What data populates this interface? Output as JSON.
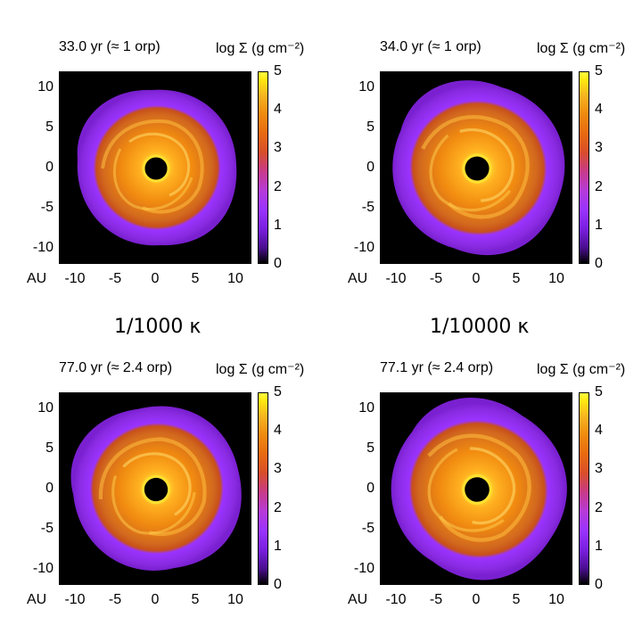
{
  "panels": [
    {
      "title": "33.0 yr (≈ 1 orp)",
      "cbar_label": "log Σ (g cm⁻²)"
    },
    {
      "title": "34.0 yr (≈ 1 orp)",
      "cbar_label": "log Σ (g cm⁻²)"
    },
    {
      "title": "77.0 yr (≈ 2.4 orp)",
      "cbar_label": "log Σ (g cm⁻²)"
    },
    {
      "title": "77.1 yr (≈ 2.4 orp)",
      "cbar_label": "log Σ (g cm⁻²)"
    }
  ],
  "axis": {
    "xlabel": "AU",
    "yticks": [
      "10",
      "5",
      "0",
      "-5",
      "-10"
    ],
    "xticks": [
      "-10",
      "-5",
      "0",
      "5",
      "10"
    ],
    "cbticks": [
      "5",
      "4",
      "3",
      "2",
      "1",
      "0"
    ]
  },
  "captions": {
    "left": "1/1000 κ",
    "right": "1/10000 κ"
  },
  "colors": {
    "disk_outer": "#8a2be2",
    "disk_mid": "#d2691e",
    "disk_inner": "#ffb020",
    "background": "#000000"
  }
}
